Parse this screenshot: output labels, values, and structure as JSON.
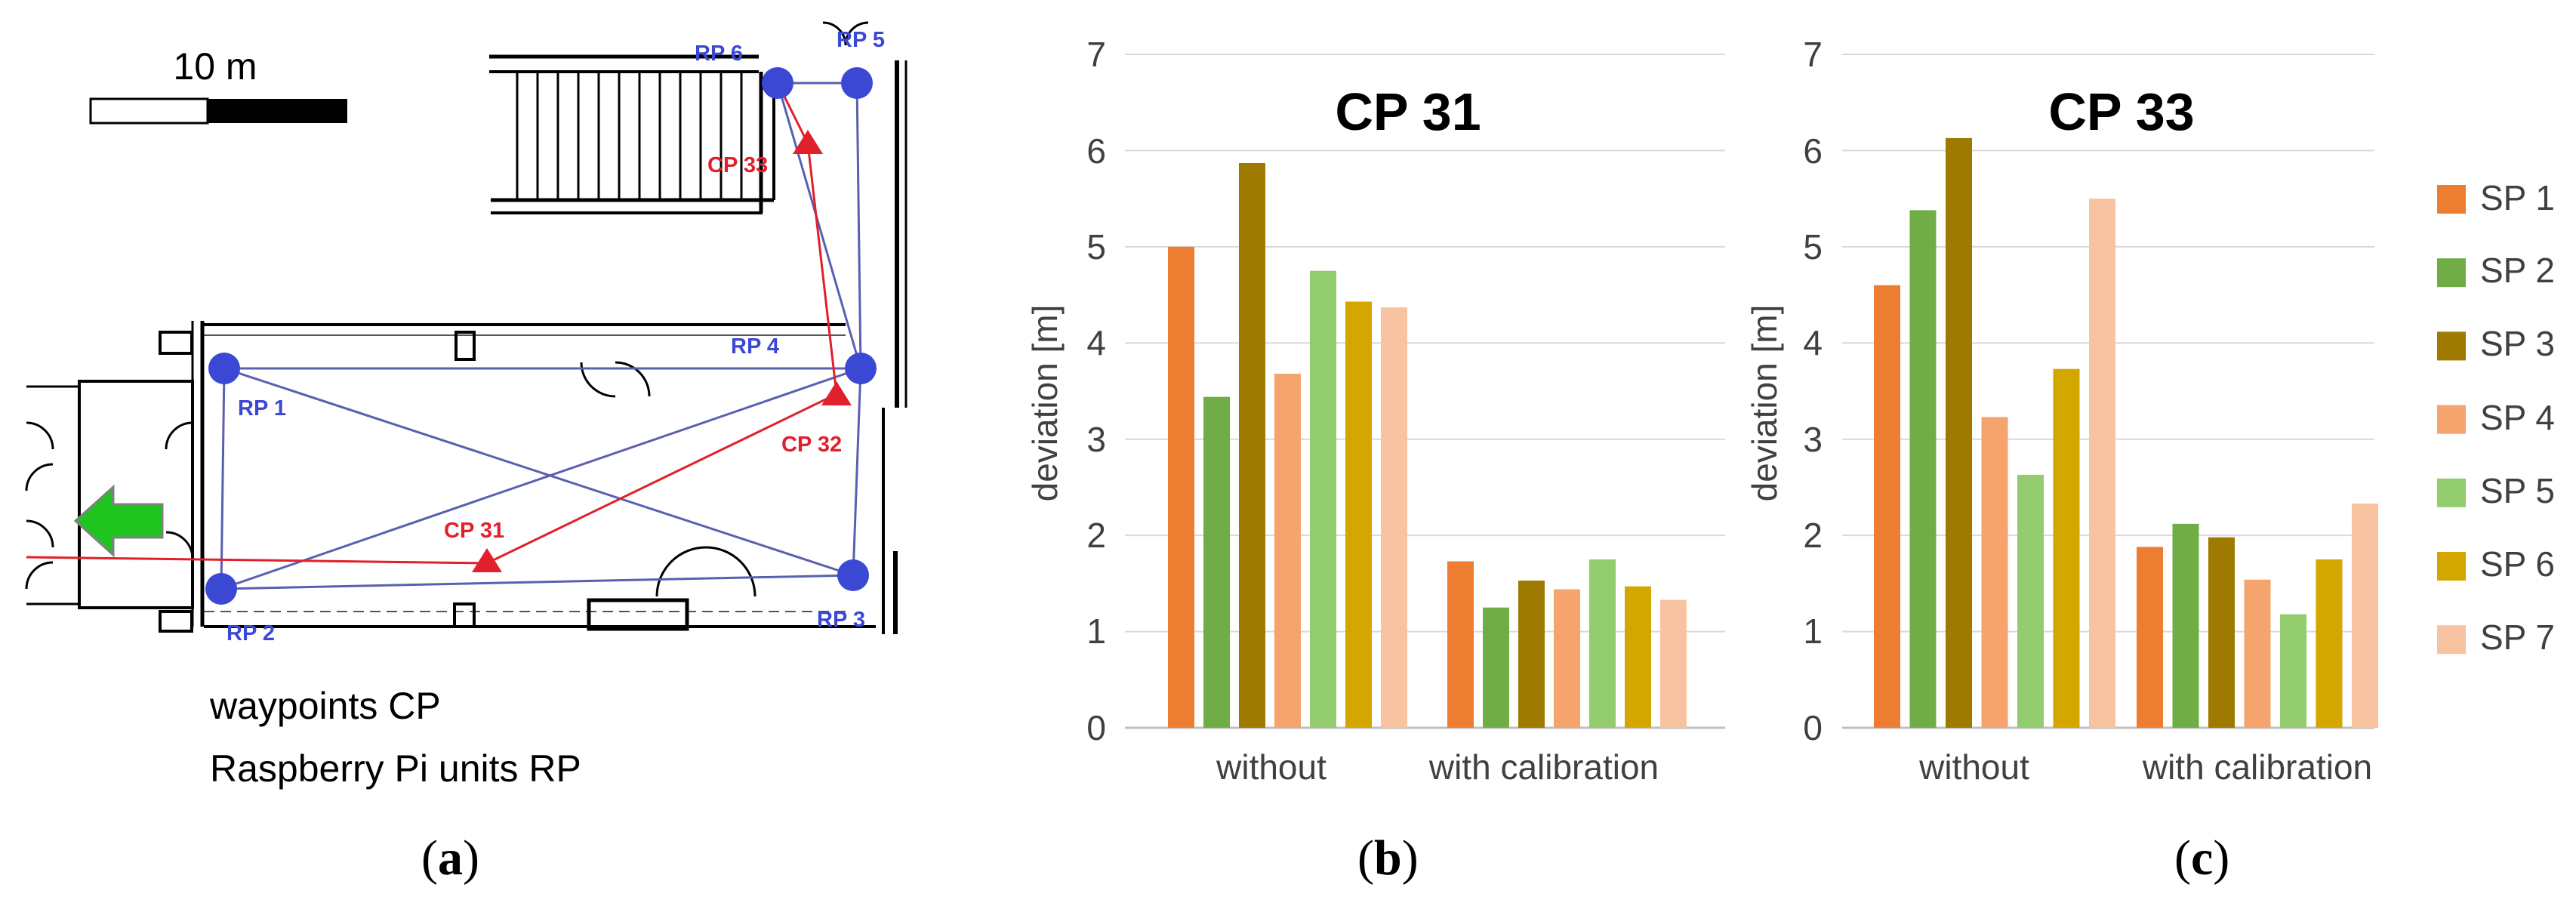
{
  "map": {
    "scale_label": "10 m",
    "legend_line1": "waypoints CP",
    "legend_line2": "Raspberry Pi units RP",
    "rp_labels": [
      "RP 1",
      "RP 2",
      "RP 3",
      "RP 4",
      "RP 5",
      "RP 6"
    ],
    "cp_labels": [
      "CP 31",
      "CP 32",
      "CP 33"
    ],
    "colors": {
      "rp": "#3a48d4",
      "rp_line": "#5a5fb0",
      "cp": "#e0202a",
      "arrow_fill": "#1fc41f",
      "arrow_stroke": "#808080"
    }
  },
  "panel_labels": {
    "a": "a",
    "b": "b",
    "c": "c"
  },
  "legend": {
    "entries": [
      {
        "name": "SP 1",
        "color": "#ed7d31"
      },
      {
        "name": "SP 2",
        "color": "#70ad47"
      },
      {
        "name": "SP 3",
        "color": "#9e7a00"
      },
      {
        "name": "SP 4",
        "color": "#f4a46c"
      },
      {
        "name": "SP 5",
        "color": "#93cc6e"
      },
      {
        "name": "SP 6",
        "color": "#d4a600"
      },
      {
        "name": "SP 7",
        "color": "#f8c3a0"
      }
    ]
  },
  "chart_data": [
    {
      "type": "bar",
      "title": "CP 31",
      "xlabel": "",
      "ylabel": "deviation [m]",
      "ylim": [
        0,
        7
      ],
      "yticks": [
        "0",
        "1",
        "2",
        "3",
        "4",
        "5",
        "6",
        "7"
      ],
      "grid": true,
      "categories": [
        "without",
        "with calibration"
      ],
      "series": [
        {
          "name": "SP 1",
          "values": [
            5.0,
            1.73
          ]
        },
        {
          "name": "SP 2",
          "values": [
            3.44,
            1.25
          ]
        },
        {
          "name": "SP 3",
          "values": [
            5.87,
            1.53
          ]
        },
        {
          "name": "SP 4",
          "values": [
            3.68,
            1.44
          ]
        },
        {
          "name": "SP 5",
          "values": [
            4.75,
            1.75
          ]
        },
        {
          "name": "SP 6",
          "values": [
            4.43,
            1.47
          ]
        },
        {
          "name": "SP 7",
          "values": [
            4.37,
            1.33
          ]
        }
      ]
    },
    {
      "type": "bar",
      "title": "CP 33",
      "xlabel": "",
      "ylabel": "deviation [m]",
      "ylim": [
        0,
        7
      ],
      "yticks": [
        "0",
        "1",
        "2",
        "3",
        "4",
        "5",
        "6",
        "7"
      ],
      "grid": true,
      "categories": [
        "without",
        "with calibration"
      ],
      "series": [
        {
          "name": "SP 1",
          "values": [
            4.6,
            1.88
          ]
        },
        {
          "name": "SP 2",
          "values": [
            5.38,
            2.12
          ]
        },
        {
          "name": "SP 3",
          "values": [
            6.13,
            1.98
          ]
        },
        {
          "name": "SP 4",
          "values": [
            3.23,
            1.54
          ]
        },
        {
          "name": "SP 5",
          "values": [
            2.63,
            1.18
          ]
        },
        {
          "name": "SP 6",
          "values": [
            3.73,
            1.75
          ]
        },
        {
          "name": "SP 7",
          "values": [
            5.5,
            2.33
          ]
        }
      ]
    }
  ]
}
